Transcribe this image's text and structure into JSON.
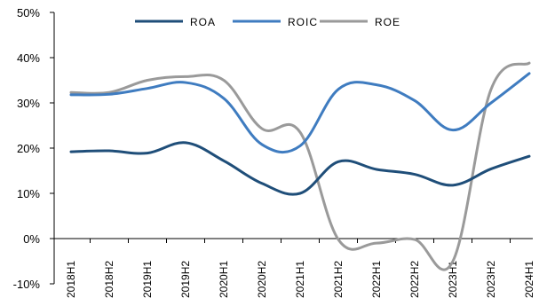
{
  "chart_data": {
    "type": "line",
    "title": "",
    "xlabel": "",
    "ylabel": "",
    "categories": [
      "2018H1",
      "2018H2",
      "2019H1",
      "2019H2",
      "2020H1",
      "2020H2",
      "2021H1",
      "2021H2",
      "2022H1",
      "2022H2",
      "2023H1",
      "2023H2",
      "2024H1"
    ],
    "ylim": [
      -10,
      50
    ],
    "yticks": [
      -10,
      0,
      10,
      20,
      30,
      40,
      50
    ],
    "ytick_labels": [
      "-10%",
      "0%",
      "10%",
      "20%",
      "30%",
      "40%",
      "50%"
    ],
    "grid": false,
    "legend_position": "top-center",
    "series": [
      {
        "name": "ROA",
        "color": "#1f4e79",
        "values": [
          19.2,
          19.4,
          18.9,
          21.2,
          17.2,
          12.2,
          10.0,
          17.0,
          15.3,
          14.2,
          11.8,
          15.4,
          18.2
        ]
      },
      {
        "name": "ROIC",
        "color": "#3f7cc0",
        "values": [
          31.8,
          31.9,
          33.2,
          34.5,
          31.0,
          20.8,
          20.5,
          33.0,
          34.0,
          30.5,
          24.0,
          30.0,
          36.5
        ]
      },
      {
        "name": "ROE",
        "color": "#9a9a9a",
        "values": [
          32.3,
          32.3,
          35.0,
          35.8,
          35.0,
          24.3,
          23.5,
          -0.2,
          -1.0,
          -0.2,
          -5.0,
          33.0,
          38.8
        ]
      }
    ]
  }
}
